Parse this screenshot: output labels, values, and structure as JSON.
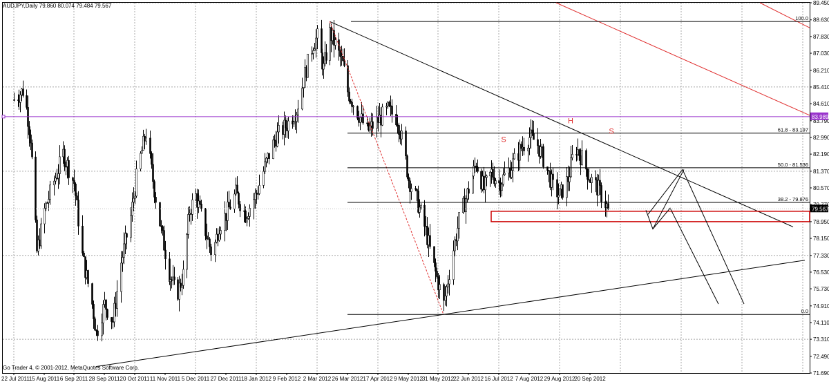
{
  "window": {
    "symbol_info": "AUDJPY,Daily  79.860 80.074 79.484 79.567",
    "copyright": "Go Trader 4, © 2001-2012, MetaQuotes Software Corp."
  },
  "colors": {
    "background": "#ffffff",
    "grid": "#a8a8a8",
    "candle": "#000000",
    "trendline": "#000000",
    "channel_red": "#e03030",
    "resistance_purple": "#9933cc",
    "zone_red": "#cc0000"
  },
  "chart_data": {
    "type": "candlestick",
    "price_axis": {
      "ticks": [
        "89.450",
        "88.630",
        "87.830",
        "87.030",
        "86.210",
        "85.410",
        "84.610",
        "83.790",
        "82.990",
        "82.190",
        "81.370",
        "80.570",
        "79.770",
        "78.950",
        "78.150",
        "77.330",
        "76.530",
        "75.730",
        "74.910",
        "74.110",
        "73.310",
        "72.490",
        "71.690"
      ],
      "ylim": [
        71.69,
        89.45
      ],
      "current_price": "79.567",
      "highlight_level": "83.989"
    },
    "date_axis": {
      "ticks": [
        "22 Jul 2011",
        "15 Aug 2011",
        "6 Sep 2011",
        "28 Sep 2011",
        "20 Oct 2011",
        "11 Nov 2011",
        "5 Dec 2011",
        "27 Dec 2011",
        "18 Jan 2012",
        "9 Feb 2012",
        "2 Mar 2012",
        "26 Mar 2012",
        "17 Apr 2012",
        "9 May 2012",
        "31 May 2012",
        "22 Jun 2012",
        "16 Jul 2012",
        "7 Aug 2012",
        "29 Aug 2012",
        "20 Sep 2012"
      ]
    },
    "close_path": [
      [
        "22 Jul 2011",
        84.8
      ],
      [
        "30 Jul 2011",
        85.3
      ],
      [
        "4 Aug 2011",
        83.0
      ],
      [
        "9 Aug 2011",
        77.5
      ],
      [
        "15 Aug 2011",
        79.5
      ],
      [
        "22 Aug 2011",
        80.9
      ],
      [
        "29 Aug 2011",
        82.2
      ],
      [
        "6 Sep 2011",
        80.8
      ],
      [
        "12 Sep 2011",
        77.3
      ],
      [
        "19 Sep 2011",
        75.0
      ],
      [
        "22 Sep 2011",
        73.6
      ],
      [
        "28 Sep 2011",
        75.0
      ],
      [
        "4 Oct 2011",
        74.2
      ],
      [
        "10 Oct 2011",
        77.0
      ],
      [
        "17 Oct 2011",
        79.2
      ],
      [
        "22 Oct 2011",
        81.5
      ],
      [
        "28 Oct 2011",
        83.2
      ],
      [
        "3 Nov 2011",
        80.5
      ],
      [
        "8 Nov 2011",
        78.5
      ],
      [
        "14 Nov 2011",
        76.5
      ],
      [
        "20 Nov 2011",
        75.4
      ],
      [
        "25 Nov 2011",
        76.4
      ],
      [
        "30 Nov 2011",
        79.5
      ],
      [
        "5 Dec 2011",
        80.2
      ],
      [
        "12 Dec 2011",
        78.5
      ],
      [
        "17 Dec 2011",
        77.3
      ],
      [
        "22 Dec 2011",
        78.8
      ],
      [
        "27 Dec 2011",
        79.3
      ],
      [
        "3 Jan 2012",
        80.3
      ],
      [
        "10 Jan 2012",
        79.3
      ],
      [
        "18 Jan 2012",
        80.3
      ],
      [
        "26 Jan 2012",
        82.0
      ],
      [
        "1 Feb 2012",
        83.0
      ],
      [
        "9 Feb 2012",
        83.6
      ],
      [
        "16 Feb 2012",
        84.3
      ],
      [
        "23 Feb 2012",
        86.3
      ],
      [
        "28 Feb 2012",
        87.5
      ],
      [
        "2 Mar 2012",
        87.8
      ],
      [
        "7 Mar 2012",
        86.3
      ],
      [
        "12 Mar 2012",
        88.0
      ],
      [
        "17 Mar 2012",
        87.3
      ],
      [
        "22 Mar 2012",
        86.5
      ],
      [
        "26 Mar 2012",
        85.2
      ],
      [
        "2 Apr 2012",
        84.2
      ],
      [
        "9 Apr 2012",
        83.3
      ],
      [
        "17 Apr 2012",
        83.8
      ],
      [
        "24 Apr 2012",
        84.3
      ],
      [
        "1 May 2012",
        83.9
      ],
      [
        "6 May 2012",
        82.3
      ],
      [
        "9 May 2012",
        81.0
      ],
      [
        "15 May 2012",
        80.0
      ],
      [
        "22 May 2012",
        78.5
      ],
      [
        "27 May 2012",
        77.0
      ],
      [
        "31 May 2012",
        76.0
      ],
      [
        "4 Jun 2012",
        75.0
      ],
      [
        "10 Jun 2012",
        77.3
      ],
      [
        "15 Jun 2012",
        79.0
      ],
      [
        "22 Jun 2012",
        80.5
      ],
      [
        "28 Jun 2012",
        81.8
      ],
      [
        "4 Jul 2012",
        80.5
      ],
      [
        "10 Jul 2012",
        81.3
      ],
      [
        "16 Jul 2012",
        80.8
      ],
      [
        "24 Jul 2012",
        81.5
      ],
      [
        "1 Aug 2012",
        82.5
      ],
      [
        "7 Aug 2012",
        83.0
      ],
      [
        "12 Aug 2012",
        82.8
      ],
      [
        "18 Aug 2012",
        81.8
      ],
      [
        "24 Aug 2012",
        80.6
      ],
      [
        "29 Aug 2012",
        80.2
      ],
      [
        "4 Sep 2012",
        81.0
      ],
      [
        "9 Sep 2012",
        82.6
      ],
      [
        "14 Sep 2012",
        82.0
      ],
      [
        "20 Sep 2012",
        81.0
      ],
      [
        "26 Sep 2012",
        80.5
      ],
      [
        "3 Oct 2012",
        79.567
      ]
    ],
    "annotations": {
      "head_and_shoulders": [
        "S",
        "H",
        "S"
      ],
      "fibonacci": [
        "100.0",
        "61.8 - 83.197",
        "50.0 - 81.536",
        "38.2 - 79.876",
        "0.0"
      ]
    }
  }
}
